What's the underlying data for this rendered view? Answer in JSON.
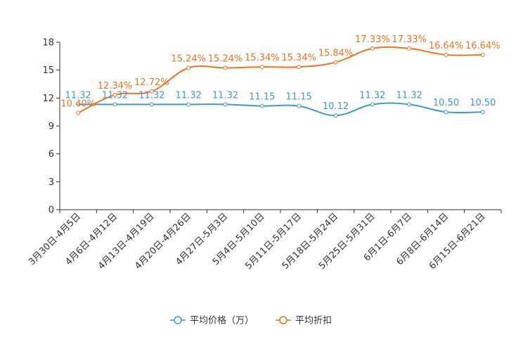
{
  "chart_data": {
    "type": "line",
    "categories": [
      "3月30日-4月5日",
      "4月6日-4月12日",
      "4月13日-4月19日",
      "4月20日-4月26日",
      "4月27日-5月3日",
      "5月4日-5月10日",
      "5月11日-5月17日",
      "5月18日-5月24日",
      "5月25日-5月31日",
      "6月1日-6月7日",
      "6月8日-6月14日",
      "6月15日-6月21日"
    ],
    "series": [
      {
        "name": "平均价格（万）",
        "color": "#3d9bc7",
        "values": [
          11.32,
          11.32,
          11.32,
          11.32,
          11.32,
          11.15,
          11.15,
          10.12,
          11.32,
          11.32,
          10.5,
          10.5
        ],
        "labels": [
          "11.32",
          "11.32",
          "11.32",
          "11.32",
          "11.32",
          "11.15",
          "11.15",
          "10.12",
          "11.32",
          "11.32",
          "10.50",
          "10.50"
        ]
      },
      {
        "name": "平均折扣",
        "color": "#f0731f",
        "values": [
          10.4,
          12.34,
          12.72,
          15.24,
          15.24,
          15.34,
          15.34,
          15.84,
          17.33,
          17.33,
          16.64,
          16.64
        ],
        "labels": [
          "10.40%",
          "12.34%",
          "12.72%",
          "15.24%",
          "15.24%",
          "15.34%",
          "15.34%",
          "15.84%",
          "17.33%",
          "17.33%",
          "16.64%",
          "16.64%"
        ]
      }
    ],
    "yticks": [
      0,
      3,
      6,
      9,
      12,
      15,
      18
    ],
    "ylim": [
      0,
      18
    ],
    "title": "",
    "xlabel": "",
    "ylabel": "",
    "legend_position": "bottom-center"
  }
}
